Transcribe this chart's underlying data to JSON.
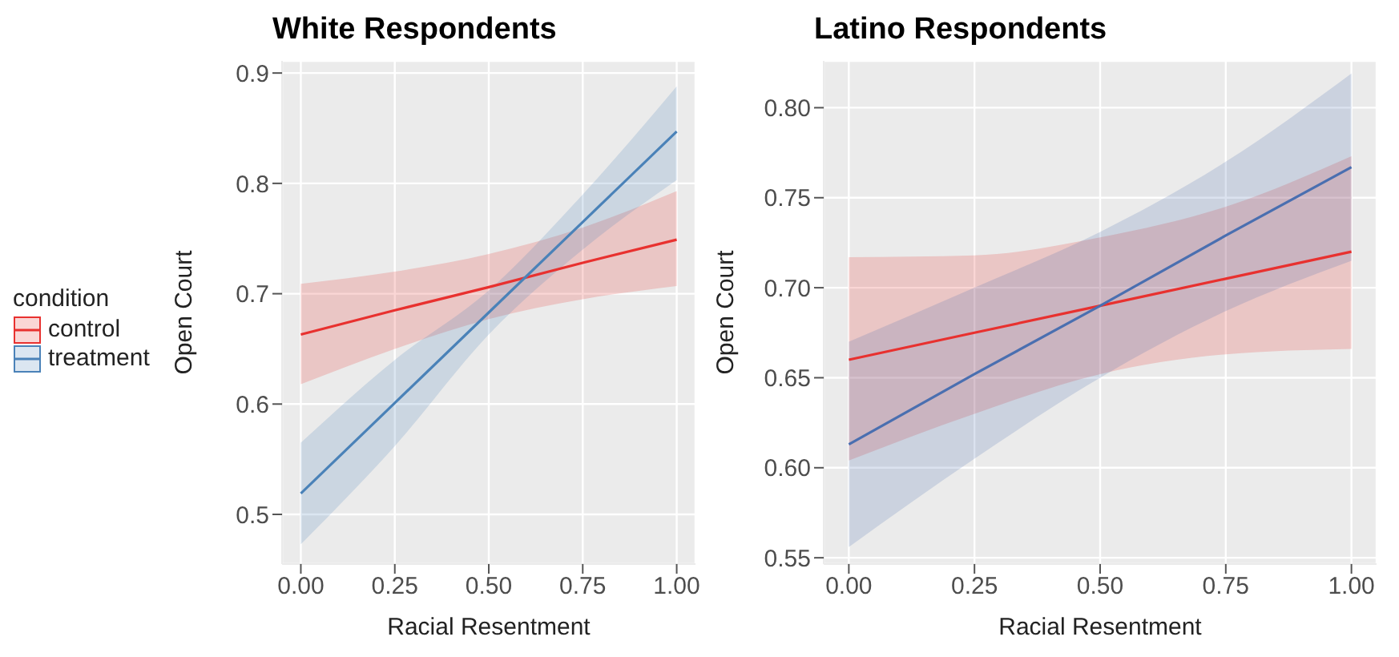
{
  "chart_data": [
    {
      "type": "line",
      "title": "White Respondents",
      "xlabel": "Racial Resentment",
      "ylabel": "Open Court",
      "legend_title": "condition",
      "legend": "left",
      "grid": true,
      "x": [
        0,
        0.25,
        0.5,
        0.75,
        1
      ],
      "xlim": [
        -0.05,
        1.05
      ],
      "xticks": [
        {
          "value": 0,
          "label": "0.00"
        },
        {
          "value": 0.25,
          "label": "0.25"
        },
        {
          "value": 0.5,
          "label": "0.50"
        },
        {
          "value": 0.75,
          "label": "0.75"
        },
        {
          "value": 1,
          "label": "1.00"
        }
      ],
      "ylim": [
        0.455,
        0.911
      ],
      "yticks": [
        0.5,
        0.6,
        0.7,
        0.8,
        0.9
      ],
      "series": [
        {
          "name": "control",
          "color": "#e8312f",
          "values": [
            0.663,
            0.685,
            0.706,
            0.728,
            0.749
          ],
          "lower": [
            0.618,
            0.65,
            0.677,
            0.695,
            0.707
          ],
          "upper": [
            0.709,
            0.72,
            0.736,
            0.76,
            0.793
          ]
        },
        {
          "name": "treatment",
          "color": "#4a82b8",
          "values": [
            0.519,
            0.601,
            0.683,
            0.765,
            0.847
          ],
          "lower": [
            0.473,
            0.562,
            0.663,
            0.74,
            0.803
          ],
          "upper": [
            0.565,
            0.64,
            0.703,
            0.79,
            0.888
          ]
        }
      ]
    },
    {
      "type": "line",
      "title": "Latino Respondents",
      "xlabel": "Racial Resentment",
      "ylabel": "Open Court",
      "grid": true,
      "x": [
        0,
        0.25,
        0.5,
        0.75,
        1
      ],
      "xlim": [
        -0.05,
        1.05
      ],
      "xticks": [
        {
          "value": 0,
          "label": "0.00"
        },
        {
          "value": 0.25,
          "label": "0.25"
        },
        {
          "value": 0.5,
          "label": "0.50"
        },
        {
          "value": 0.75,
          "label": "0.75"
        },
        {
          "value": 1,
          "label": "1.00"
        }
      ],
      "ylim": [
        0.5465,
        0.826
      ],
      "yticks": [
        {
          "value": 0.55,
          "label": "0.55"
        },
        {
          "value": 0.6,
          "label": "0.60"
        },
        {
          "value": 0.65,
          "label": "0.65"
        },
        {
          "value": 0.7,
          "label": "0.70"
        },
        {
          "value": 0.75,
          "label": "0.75"
        },
        {
          "value": 0.8,
          "label": "0.80"
        }
      ],
      "series": [
        {
          "color": "#e8312f",
          "values": [
            0.66,
            0.675,
            0.69,
            0.705,
            0.72
          ],
          "lower": [
            0.604,
            0.63,
            0.652,
            0.663,
            0.666
          ],
          "upper": [
            0.717,
            0.718,
            0.728,
            0.745,
            0.773
          ]
        },
        {
          "color": "#4a6fb0",
          "values": [
            0.613,
            0.652,
            0.69,
            0.729,
            0.767
          ],
          "lower": [
            0.556,
            0.605,
            0.65,
            0.687,
            0.715
          ],
          "upper": [
            0.67,
            0.7,
            0.731,
            0.77,
            0.819
          ]
        }
      ]
    }
  ]
}
